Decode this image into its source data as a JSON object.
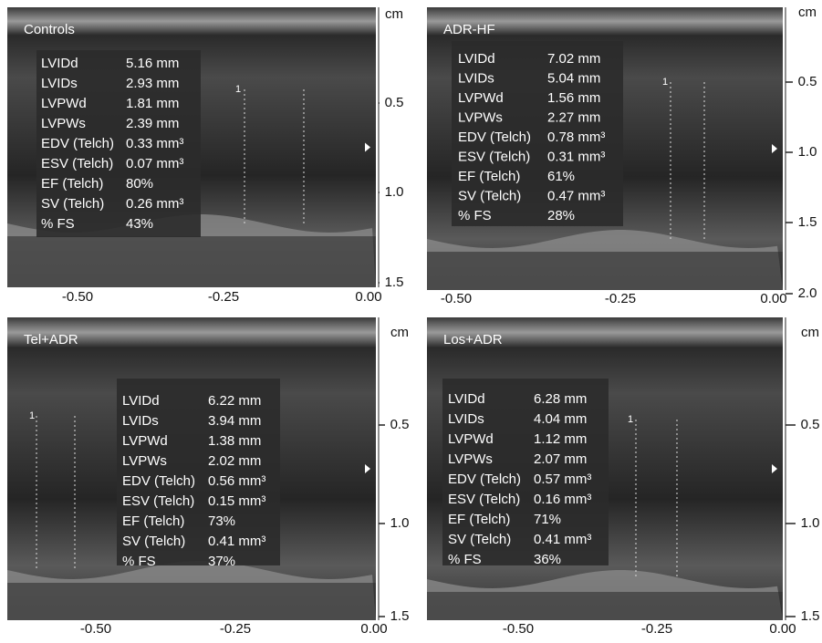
{
  "panels": [
    {
      "label": "Controls",
      "marker": "1",
      "measurements": [
        [
          "LVIDd",
          "5.16 mm"
        ],
        [
          "LVIDs",
          "2.93 mm"
        ],
        [
          "LVPWd",
          "1.81 mm"
        ],
        [
          "LVPWs",
          "2.39 mm"
        ],
        [
          "EDV (Telch)",
          "0.33 mm³"
        ],
        [
          "ESV (Telch)",
          "0.07 mm³"
        ],
        [
          "EF (Telch)",
          "80%"
        ],
        [
          "SV (Telch)",
          "0.26 mm³"
        ],
        [
          "% FS",
          "43%"
        ]
      ],
      "x_labels": [
        "-0.50",
        "-0.25",
        "0.00"
      ],
      "y_labels": [
        "cm",
        "0.5",
        "1.0",
        "1.5"
      ]
    },
    {
      "label": "ADR-HF",
      "marker": "1",
      "measurements": [
        [
          "LVIDd",
          "7.02 mm"
        ],
        [
          "LVIDs",
          "5.04 mm"
        ],
        [
          "LVPWd",
          "1.56 mm"
        ],
        [
          "LVPWs",
          "2.27 mm"
        ],
        [
          "EDV (Telch)",
          "0.78 mm³"
        ],
        [
          "ESV (Telch)",
          "0.31 mm³"
        ],
        [
          "EF (Telch)",
          "61%"
        ],
        [
          "SV (Telch)",
          "0.47 mm³"
        ],
        [
          "% FS",
          "28%"
        ]
      ],
      "x_labels": [
        "-0.50",
        "-0.25",
        "0.00"
      ],
      "y_labels": [
        "cm",
        "0.5",
        "1.0",
        "1.5",
        "2.0"
      ]
    },
    {
      "label": "Tel+ADR",
      "marker": "1",
      "measurements": [
        [
          "LVIDd",
          "6.22 mm"
        ],
        [
          "LVIDs",
          "3.94 mm"
        ],
        [
          "LVPWd",
          "1.38 mm"
        ],
        [
          "LVPWs",
          "2.02 mm"
        ],
        [
          "EDV (Telch)",
          "0.56 mm³"
        ],
        [
          "ESV (Telch)",
          "0.15 mm³"
        ],
        [
          "EF (Telch)",
          "73%"
        ],
        [
          "SV (Telch)",
          "0.41 mm³"
        ],
        [
          "% FS",
          "37%"
        ]
      ],
      "x_labels": [
        "-0.50",
        "-0.25",
        "0.00"
      ],
      "y_labels": [
        "cm",
        "0.5",
        "1.0",
        "1.5"
      ]
    },
    {
      "label": "Los+ADR",
      "marker": "1",
      "measurements": [
        [
          "LVIDd",
          "6.28 mm"
        ],
        [
          "LVIDs",
          "4.04 mm"
        ],
        [
          "LVPWd",
          "1.12 mm"
        ],
        [
          "LVPWs",
          "2.07 mm"
        ],
        [
          "EDV (Telch)",
          "0.57 mm³"
        ],
        [
          "ESV (Telch)",
          "0.16 mm³"
        ],
        [
          "EF (Telch)",
          "71%"
        ],
        [
          "SV (Telch)",
          "0.41 mm³"
        ],
        [
          "% FS",
          "36%"
        ]
      ],
      "x_labels": [
        "-0.50",
        "-0.25",
        "0.00"
      ],
      "y_labels": [
        "cm",
        "0.5",
        "1.0",
        "1.5"
      ]
    }
  ]
}
